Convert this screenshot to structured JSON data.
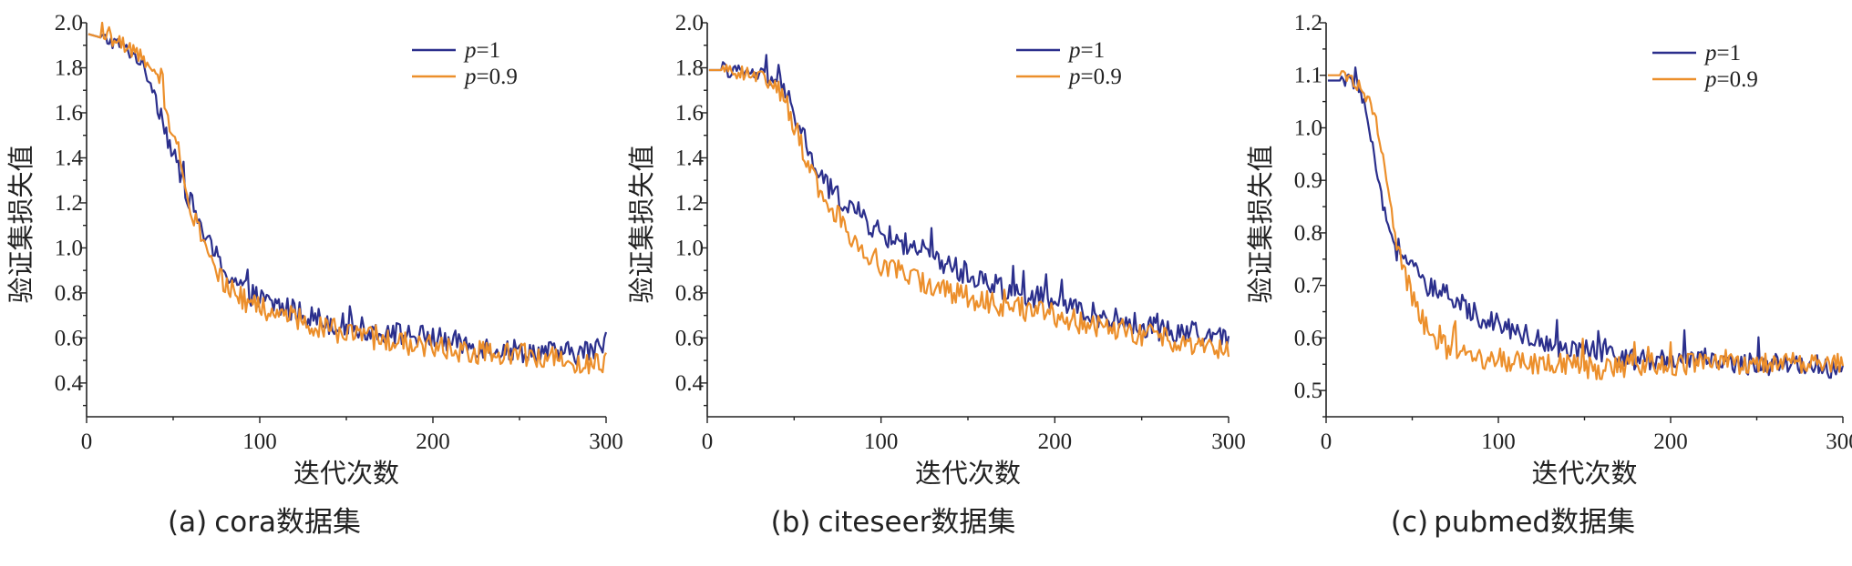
{
  "figures": [
    {
      "caption_prefix": "(a)",
      "caption_text": "cora数据集"
    },
    {
      "caption_prefix": "(b)",
      "caption_text": "citeseer数据集"
    },
    {
      "caption_prefix": "(c)",
      "caption_text": "pubmed数据集"
    }
  ],
  "colors": {
    "p_1": "#2b2f8c",
    "p_0_9": "#ec8f2b",
    "axis": "#222222"
  },
  "chart_data": [
    {
      "type": "line",
      "title": "(a) cora数据集",
      "xlabel": "迭代次数",
      "ylabel": "验证集损失值",
      "xlim": [
        0,
        300
      ],
      "ylim": [
        0.25,
        2.0
      ],
      "xticks": [
        0,
        100,
        200,
        300
      ],
      "yticks": [
        0.4,
        0.6,
        0.8,
        1.0,
        1.2,
        1.4,
        1.6,
        1.8,
        2.0
      ],
      "ytick_decimals": 1,
      "legend": "top-right",
      "grid": false,
      "series": [
        {
          "name": "p=1",
          "color": "#2b2f8c",
          "x": [
            1,
            10,
            20,
            30,
            38,
            45,
            50,
            55,
            60,
            65,
            70,
            80,
            90,
            100,
            120,
            140,
            160,
            180,
            200,
            220,
            240,
            260,
            280,
            295,
            300
          ],
          "y": [
            1.95,
            1.93,
            1.9,
            1.84,
            1.72,
            1.55,
            1.4,
            1.32,
            1.2,
            1.12,
            1.02,
            0.9,
            0.82,
            0.77,
            0.72,
            0.67,
            0.64,
            0.62,
            0.6,
            0.57,
            0.55,
            0.54,
            0.53,
            0.55,
            0.6
          ]
        },
        {
          "name": "p=0.9",
          "color": "#ec8f2b",
          "x": [
            1,
            10,
            20,
            30,
            38,
            45,
            50,
            55,
            60,
            65,
            70,
            80,
            90,
            100,
            120,
            140,
            160,
            180,
            200,
            220,
            240,
            260,
            280,
            295,
            300
          ],
          "y": [
            1.95,
            1.93,
            1.91,
            1.86,
            1.78,
            1.66,
            1.5,
            1.38,
            1.2,
            1.08,
            0.98,
            0.84,
            0.77,
            0.73,
            0.69,
            0.64,
            0.6,
            0.58,
            0.56,
            0.54,
            0.53,
            0.52,
            0.5,
            0.48,
            0.5
          ]
        }
      ]
    },
    {
      "type": "line",
      "title": "(b) citeseer数据集",
      "xlabel": "迭代次数",
      "ylabel": "验证集损失值",
      "xlim": [
        0,
        300
      ],
      "ylim": [
        0.25,
        2.0
      ],
      "xticks": [
        0,
        100,
        200,
        300
      ],
      "yticks": [
        0.4,
        0.6,
        0.8,
        1.0,
        1.2,
        1.4,
        1.6,
        1.8,
        2.0
      ],
      "ytick_decimals": 1,
      "legend": "top-right",
      "grid": false,
      "series": [
        {
          "name": "p=1",
          "color": "#2b2f8c",
          "x": [
            1,
            10,
            20,
            30,
            40,
            45,
            50,
            55,
            60,
            65,
            70,
            80,
            90,
            100,
            120,
            140,
            160,
            180,
            200,
            220,
            240,
            260,
            280,
            300
          ],
          "y": [
            1.79,
            1.79,
            1.78,
            1.77,
            1.74,
            1.68,
            1.6,
            1.5,
            1.4,
            1.32,
            1.26,
            1.2,
            1.13,
            1.06,
            1.0,
            0.92,
            0.85,
            0.8,
            0.76,
            0.71,
            0.67,
            0.64,
            0.62,
            0.6
          ]
        },
        {
          "name": "p=0.9",
          "color": "#ec8f2b",
          "x": [
            1,
            10,
            20,
            30,
            40,
            45,
            50,
            55,
            60,
            65,
            70,
            80,
            90,
            100,
            120,
            140,
            160,
            180,
            200,
            220,
            240,
            260,
            280,
            300
          ],
          "y": [
            1.79,
            1.79,
            1.78,
            1.76,
            1.72,
            1.65,
            1.55,
            1.44,
            1.34,
            1.26,
            1.19,
            1.08,
            1.0,
            0.93,
            0.86,
            0.8,
            0.76,
            0.73,
            0.7,
            0.66,
            0.63,
            0.6,
            0.58,
            0.55
          ]
        }
      ]
    },
    {
      "type": "line",
      "title": "(c) pubmed数据集",
      "xlabel": "迭代次数",
      "ylabel": "验证集损失值",
      "xlim": [
        0,
        300
      ],
      "ylim": [
        0.45,
        1.2
      ],
      "xticks": [
        0,
        100,
        200,
        300
      ],
      "yticks": [
        0.5,
        0.6,
        0.7,
        0.8,
        0.9,
        1.0,
        1.1,
        1.2
      ],
      "ytick_decimals": 1,
      "legend": "top-right",
      "grid": false,
      "series": [
        {
          "name": "p=1",
          "color": "#2b2f8c",
          "x": [
            1,
            10,
            15,
            20,
            25,
            30,
            35,
            40,
            45,
            50,
            55,
            60,
            70,
            80,
            90,
            100,
            120,
            140,
            160,
            180,
            200,
            220,
            240,
            260,
            280,
            300
          ],
          "y": [
            1.09,
            1.09,
            1.09,
            1.07,
            1.0,
            0.9,
            0.82,
            0.77,
            0.76,
            0.74,
            0.71,
            0.69,
            0.68,
            0.66,
            0.64,
            0.63,
            0.6,
            0.58,
            0.57,
            0.56,
            0.56,
            0.56,
            0.55,
            0.55,
            0.55,
            0.54
          ]
        },
        {
          "name": "p=0.9",
          "color": "#ec8f2b",
          "x": [
            1,
            10,
            15,
            20,
            25,
            30,
            35,
            40,
            45,
            50,
            55,
            60,
            70,
            80,
            90,
            100,
            120,
            140,
            160,
            180,
            200,
            220,
            240,
            260,
            280,
            300
          ],
          "y": [
            1.1,
            1.1,
            1.09,
            1.08,
            1.05,
            1.0,
            0.9,
            0.8,
            0.73,
            0.68,
            0.64,
            0.61,
            0.58,
            0.57,
            0.56,
            0.56,
            0.55,
            0.55,
            0.54,
            0.55,
            0.55,
            0.55,
            0.55,
            0.55,
            0.55,
            0.55
          ]
        }
      ]
    }
  ]
}
